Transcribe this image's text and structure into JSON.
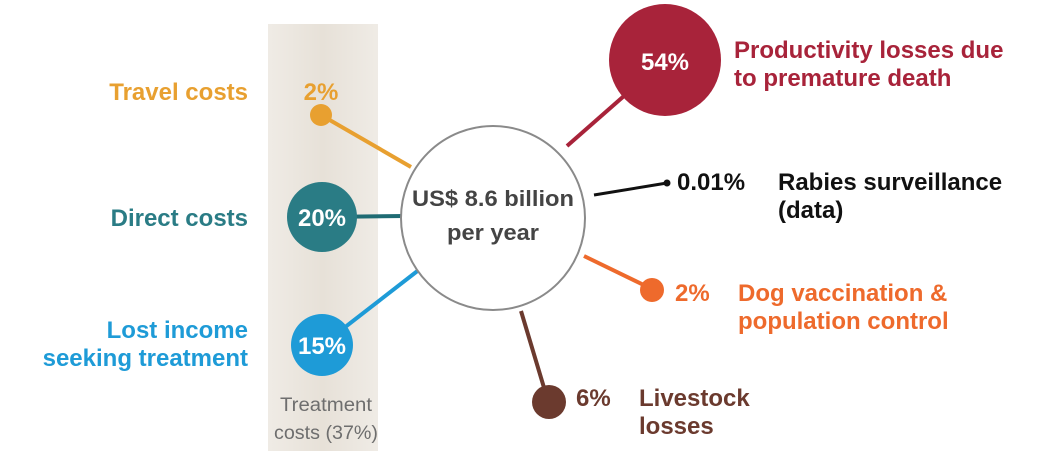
{
  "center": {
    "line1": "US$ 8.6 billion",
    "line2": "per year"
  },
  "treatment_band": {
    "line1": "Treatment",
    "line2": "costs (37%)"
  },
  "left_items": [
    {
      "pct": "2%",
      "label_lines": [
        "Travel costs"
      ],
      "color": "#E8A030"
    },
    {
      "pct": "20%",
      "label_lines": [
        "Direct costs"
      ],
      "color": "#2A7C85"
    },
    {
      "pct": "15%",
      "label_lines": [
        "Lost income",
        "seeking treatment"
      ],
      "color": "#1E9BD7"
    }
  ],
  "right_items": [
    {
      "pct": "54%",
      "label_lines": [
        "Productivity losses due",
        "to premature death"
      ],
      "color": "#A8233A"
    },
    {
      "pct": "0.01%",
      "label_lines": [
        "Rabies surveillance",
        "(data)"
      ],
      "color": "#111111"
    },
    {
      "pct": "2%",
      "label_lines": [
        "Dog vaccination &",
        "population control"
      ],
      "color": "#EE6A2C"
    },
    {
      "pct": "6%",
      "label_lines": [
        "Livestock",
        "losses"
      ],
      "color": "#6B3A2E"
    }
  ],
  "colors": {
    "band": "#E7E1D8",
    "center_stroke": "#8A8A8A",
    "center_text": "#444444",
    "band_text": "#6E6E6E"
  }
}
